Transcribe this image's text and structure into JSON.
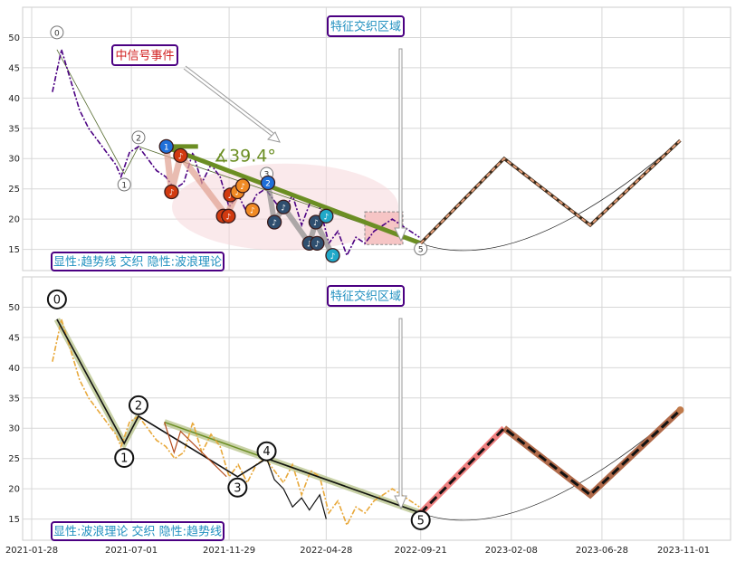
{
  "chart_data": [
    {
      "type": "line",
      "panel": "top",
      "ylim": [
        11.5,
        55
      ],
      "yticks": [
        15,
        20,
        25,
        30,
        35,
        40,
        45,
        50
      ],
      "grid": true,
      "price_series": {
        "color": "#4b0082",
        "x": [
          "2021-03-01",
          "2021-03-15",
          "2021-03-29",
          "2021-04-12",
          "2021-04-26",
          "2021-05-10",
          "2021-05-24",
          "2021-06-07",
          "2021-06-15",
          "2021-06-28",
          "2021-07-12",
          "2021-07-26",
          "2021-08-09",
          "2021-08-23",
          "2021-09-06",
          "2021-09-20",
          "2021-10-04",
          "2021-10-18",
          "2021-11-01",
          "2021-11-15",
          "2021-11-29",
          "2021-12-13",
          "2021-12-27",
          "2022-01-10",
          "2022-01-24",
          "2022-02-07",
          "2022-02-21",
          "2022-03-07",
          "2022-03-21",
          "2022-04-04",
          "2022-04-18",
          "2022-05-02",
          "2022-05-16",
          "2022-05-30",
          "2022-06-13",
          "2022-06-27",
          "2022-07-11",
          "2022-07-25",
          "2022-08-08",
          "2022-08-22",
          "2022-09-05",
          "2022-09-19"
        ],
        "y": [
          41,
          48,
          43,
          38,
          35,
          33,
          31,
          29,
          27,
          31,
          32,
          30,
          28,
          27,
          25,
          26,
          31,
          26,
          29,
          27,
          22,
          24,
          21,
          24,
          25,
          23,
          21,
          24,
          19,
          23,
          22,
          16,
          18,
          14,
          17,
          16,
          18,
          19,
          20,
          19,
          18,
          17
        ]
      },
      "trend_line": {
        "color": "#6b8e23",
        "x": [
          "2021-08-21",
          "2022-09-21"
        ],
        "y": [
          32,
          16
        ]
      },
      "angle_label": "∡39.4°",
      "outlines": [
        {
          "x": [
            "2021-03-08",
            "2021-06-20",
            "2021-07-12",
            "2022-09-21"
          ],
          "y": [
            48,
            27.5,
            32,
            16
          ]
        }
      ],
      "wave_points": [
        {
          "label": "0",
          "x": "2021-03-08",
          "y": 48
        },
        {
          "label": "1",
          "x": "2021-06-20",
          "y": 27.5
        },
        {
          "label": "2",
          "x": "2021-07-12",
          "y": 32
        },
        {
          "label": "3",
          "x": "2022-01-26",
          "y": 26
        },
        {
          "label": "5",
          "x": "2022-09-21",
          "y": 16
        }
      ],
      "signal_markers": [
        {
          "label": "1",
          "kind": "blue",
          "x": "2021-08-24",
          "y": 32
        },
        {
          "label": "♪",
          "kind": "red",
          "x": "2021-09-01",
          "y": 24.5
        },
        {
          "label": "♪",
          "kind": "red",
          "x": "2021-09-15",
          "y": 30.5
        },
        {
          "label": "♪",
          "kind": "red",
          "x": "2021-11-20",
          "y": 20.5
        },
        {
          "label": "♪",
          "kind": "red",
          "x": "2021-11-28",
          "y": 20.5
        },
        {
          "label": "♪",
          "kind": "red",
          "x": "2021-12-01",
          "y": 24
        },
        {
          "label": "♪",
          "kind": "orange",
          "x": "2021-12-12",
          "y": 24.5
        },
        {
          "label": "♪",
          "kind": "orange",
          "x": "2021-12-20",
          "y": 25.5
        },
        {
          "label": "♪",
          "kind": "orange",
          "x": "2022-01-04",
          "y": 21.5
        },
        {
          "label": "2",
          "kind": "blue",
          "x": "2022-01-28",
          "y": 26
        },
        {
          "label": "♪",
          "kind": "dark",
          "x": "2022-02-07",
          "y": 19.5
        },
        {
          "label": "♪",
          "kind": "dark",
          "x": "2022-02-21",
          "y": 22
        },
        {
          "label": "♪",
          "kind": "dark",
          "x": "2022-04-02",
          "y": 16
        },
        {
          "label": "♪",
          "kind": "dark",
          "x": "2022-04-12",
          "y": 19.5
        },
        {
          "label": "♪",
          "kind": "dark",
          "x": "2022-04-14",
          "y": 16
        },
        {
          "label": "♪",
          "kind": "cyan",
          "x": "2022-04-28",
          "y": 20.5
        },
        {
          "label": "♪",
          "kind": "cyan",
          "x": "2022-05-08",
          "y": 14
        }
      ],
      "projection": {
        "color": "#e8a07a",
        "x": [
          "2022-09-21",
          "2023-01-28",
          "2023-06-10",
          "2023-10-27"
        ],
        "y": [
          16,
          30,
          19,
          33
        ]
      },
      "annotations": {
        "feature_zone": "特征交织区域",
        "signal_event": "中信号事件",
        "legend": "显性:趋势线 交织 隐性:波浪理论"
      }
    },
    {
      "type": "line",
      "panel": "bottom",
      "ylim": [
        11.5,
        55
      ],
      "yticks": [
        15,
        20,
        25,
        30,
        35,
        40,
        45,
        50
      ],
      "grid": true,
      "price_series": {
        "color": "#e8a83a",
        "x": [
          "2021-03-01",
          "2021-03-15",
          "2021-03-29",
          "2021-04-12",
          "2021-04-26",
          "2021-05-10",
          "2021-05-24",
          "2021-06-07",
          "2021-06-15",
          "2021-06-28",
          "2021-07-12",
          "2021-07-26",
          "2021-08-09",
          "2021-08-23",
          "2021-09-06",
          "2021-09-20",
          "2021-10-04",
          "2021-10-18",
          "2021-11-01",
          "2021-11-15",
          "2021-11-29",
          "2021-12-13",
          "2021-12-27",
          "2022-01-10",
          "2022-01-24",
          "2022-02-07",
          "2022-02-21",
          "2022-03-07",
          "2022-03-21",
          "2022-04-04",
          "2022-04-18",
          "2022-05-02",
          "2022-05-16",
          "2022-05-30",
          "2022-06-13",
          "2022-06-27",
          "2022-07-11",
          "2022-07-25",
          "2022-08-08",
          "2022-08-22",
          "2022-09-05",
          "2022-09-19"
        ],
        "y": [
          41,
          48,
          43,
          38,
          35,
          33,
          31,
          29,
          27,
          31,
          32,
          30,
          28,
          27,
          25,
          26,
          31,
          26,
          29,
          27,
          22,
          24,
          21,
          24,
          25,
          23,
          21,
          24,
          19,
          23,
          22,
          16,
          18,
          14,
          17,
          16,
          18,
          19,
          20,
          19,
          18,
          17
        ]
      },
      "wave_path": {
        "x": [
          "2021-03-08",
          "2021-06-20",
          "2021-07-12",
          "2021-12-12",
          "2022-01-26",
          "2022-09-21"
        ],
        "y": [
          48,
          27.5,
          32,
          22,
          25,
          16
        ]
      },
      "wave_points": [
        {
          "label": "0",
          "x": "2021-03-08",
          "y": 48
        },
        {
          "label": "1",
          "x": "2021-06-20",
          "y": 27.5
        },
        {
          "label": "2",
          "x": "2021-07-12",
          "y": 32
        },
        {
          "label": "3",
          "x": "2021-12-12",
          "y": 22
        },
        {
          "label": "4",
          "x": "2022-01-26",
          "y": 25
        },
        {
          "label": "5",
          "x": "2022-09-21",
          "y": 16
        }
      ],
      "trend_line": {
        "color": "#6b8e23",
        "x": [
          "2021-08-21",
          "2022-09-21"
        ],
        "y": [
          31,
          16
        ]
      },
      "projection": {
        "x": [
          "2022-09-21",
          "2023-01-28",
          "2023-06-10",
          "2023-10-27"
        ],
        "y": [
          16,
          30,
          19,
          33
        ]
      },
      "annotations": {
        "feature_zone": "特征交织区域",
        "legend": "显性:波浪理论 交织 隐性:趋势线"
      },
      "xticks": [
        "2021-01-28",
        "2021-07-01",
        "2021-11-29",
        "2022-04-28",
        "2022-09-21",
        "2023-02-08",
        "2023-06-28",
        "2023-11-01"
      ]
    }
  ],
  "colors": {
    "accent_purple": "#4b0082",
    "trend_green": "#6b8e23",
    "label_blue": "#1e90ff",
    "label_red": "#d12020",
    "projection_orange": "#e8a07a",
    "projection_dark": "#b06a4a",
    "projection_pink": "#f08080"
  }
}
